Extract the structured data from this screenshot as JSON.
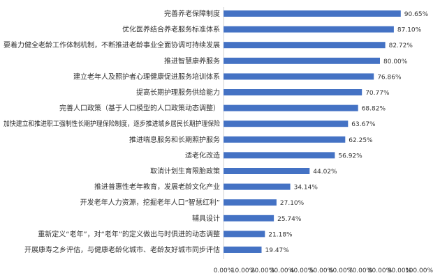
{
  "chart_data": {
    "type": "bar",
    "orientation": "horizontal",
    "title": "",
    "xlabel": "",
    "ylabel": "",
    "xlim": [
      0,
      100
    ],
    "grid": false,
    "bar_color": "#4472c4",
    "categories": [
      "完善养老保障制度",
      "优化医养结合养老服务标准体系",
      "要着力健全老龄工作体制机制，不断推进老龄事业全面协调可持续发展",
      "推进智慧康养服务",
      "建立老年人及照护者心理健康促进服务培训体系",
      "提高长期护理服务供给能力",
      "完善人口政策（基于人口模型的人口政策动态调整）",
      "加快建立和推进职工强制性长期护理保险制度，逐步推进城乡居民长期护理保险",
      "推进喘息服务和长期照护服务",
      "适老化改造",
      "取消计划生育限胎政策",
      "推进普惠性老年教育，发展老龄文化产业",
      "开发老年人力资源，挖掘老年人口“智慧红利”",
      "辅具设计",
      "重新定义“老年”，对“老年”的定义做出与时俱进的动态调整",
      "开展康寿之乡评估，与健康老龄化城市、老龄友好城市同步评估"
    ],
    "values": [
      90.65,
      87.1,
      82.72,
      80.0,
      76.86,
      70.77,
      68.82,
      63.67,
      62.25,
      56.92,
      44.02,
      34.14,
      27.1,
      25.74,
      21.18,
      19.47
    ],
    "value_labels": [
      "90.65%",
      "87.10%",
      "82.72%",
      "80.00%",
      "76.86%",
      "70.77%",
      "68.82%",
      "63.67%",
      "62.25%",
      "56.92%",
      "44.02%",
      "34.14%",
      "27.10%",
      "25.74%",
      "21.18%",
      "19.47%"
    ],
    "x_ticks": [
      0,
      10,
      20,
      30,
      40,
      50,
      60,
      70,
      80,
      90,
      100
    ],
    "x_tick_labels": [
      "0.00%",
      "10.00%",
      "20.00%",
      "30.00%",
      "40.00%",
      "50.00%",
      "60.00%",
      "70.00%",
      "80.00%",
      "90.00%",
      "100.00%"
    ]
  }
}
